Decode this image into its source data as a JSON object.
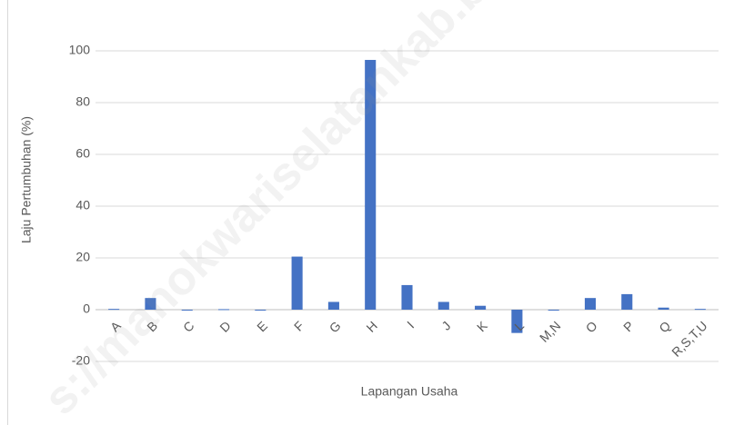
{
  "chart_data": {
    "type": "bar",
    "categories": [
      "A",
      "B",
      "C",
      "D",
      "E",
      "F",
      "G",
      "H",
      "I",
      "J",
      "K",
      "L",
      "M,N",
      "O",
      "P",
      "Q",
      "R,S,T,U"
    ],
    "values": [
      0.3,
      4.5,
      0,
      0.2,
      0,
      20.5,
      3,
      96.5,
      9.5,
      3,
      1.5,
      -9,
      0,
      4.5,
      6,
      0.8,
      0.3
    ],
    "color": "#4472c4",
    "ylim": [
      -20,
      100
    ],
    "yticks": [
      -20,
      0,
      20,
      40,
      60,
      80,
      100
    ],
    "grid": true,
    "y_label": "Laju Pertumbuhan (%)",
    "x_label": "Lapangan Usaha",
    "watermark": "s://manokwariselatankab.b"
  }
}
